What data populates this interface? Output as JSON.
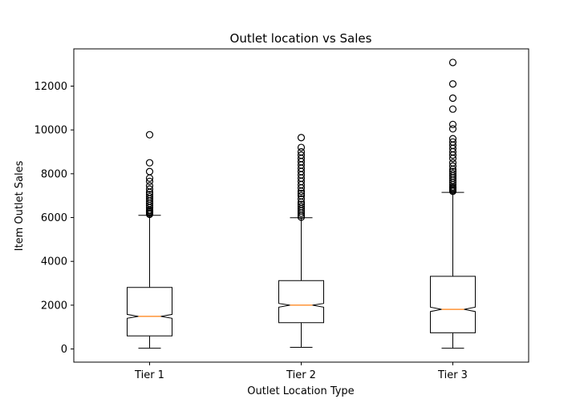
{
  "chart_data": {
    "type": "box",
    "title": "Outlet location vs Sales",
    "xlabel": "Outlet Location Type",
    "ylabel": "Item Outlet Sales",
    "categories": [
      "Tier 1",
      "Tier 2",
      "Tier 3"
    ],
    "ylim": [
      -600,
      13700
    ],
    "yticks": [
      0,
      2000,
      4000,
      6000,
      8000,
      10000,
      12000
    ],
    "notched": true,
    "grid": false,
    "boxes": [
      {
        "category": "Tier 1",
        "whisker_low": 35,
        "q1": 600,
        "median": 1490,
        "notch_low": 1400,
        "notch_high": 1580,
        "q3": 2810,
        "whisker_high": 6100,
        "outliers": [
          6150,
          6200,
          6250,
          6300,
          6350,
          6450,
          6550,
          6650,
          6750,
          6850,
          6950,
          7050,
          7150,
          7300,
          7450,
          7650,
          7800,
          8100,
          8500,
          9780
        ]
      },
      {
        "category": "Tier 2",
        "whisker_low": 75,
        "q1": 1200,
        "median": 2000,
        "notch_low": 1910,
        "notch_high": 2080,
        "q3": 3120,
        "whisker_high": 5990,
        "outliers": [
          6020,
          6100,
          6200,
          6300,
          6400,
          6500,
          6600,
          6700,
          6850,
          7000,
          7100,
          7200,
          7350,
          7500,
          7650,
          7800,
          7950,
          8100,
          8250,
          8400,
          8550,
          8700,
          8850,
          9000,
          9200,
          9650
        ]
      },
      {
        "category": "Tier 3",
        "whisker_low": 35,
        "q1": 740,
        "median": 1810,
        "notch_low": 1710,
        "notch_high": 1910,
        "q3": 3320,
        "whisker_high": 7150,
        "outliers": [
          7200,
          7250,
          7300,
          7350,
          7400,
          7500,
          7600,
          7700,
          7800,
          7900,
          8000,
          8100,
          8200,
          8350,
          8500,
          8700,
          8850,
          9000,
          9150,
          9300,
          9450,
          9600,
          10050,
          10250,
          10950,
          11450,
          12100,
          13080
        ]
      }
    ]
  }
}
